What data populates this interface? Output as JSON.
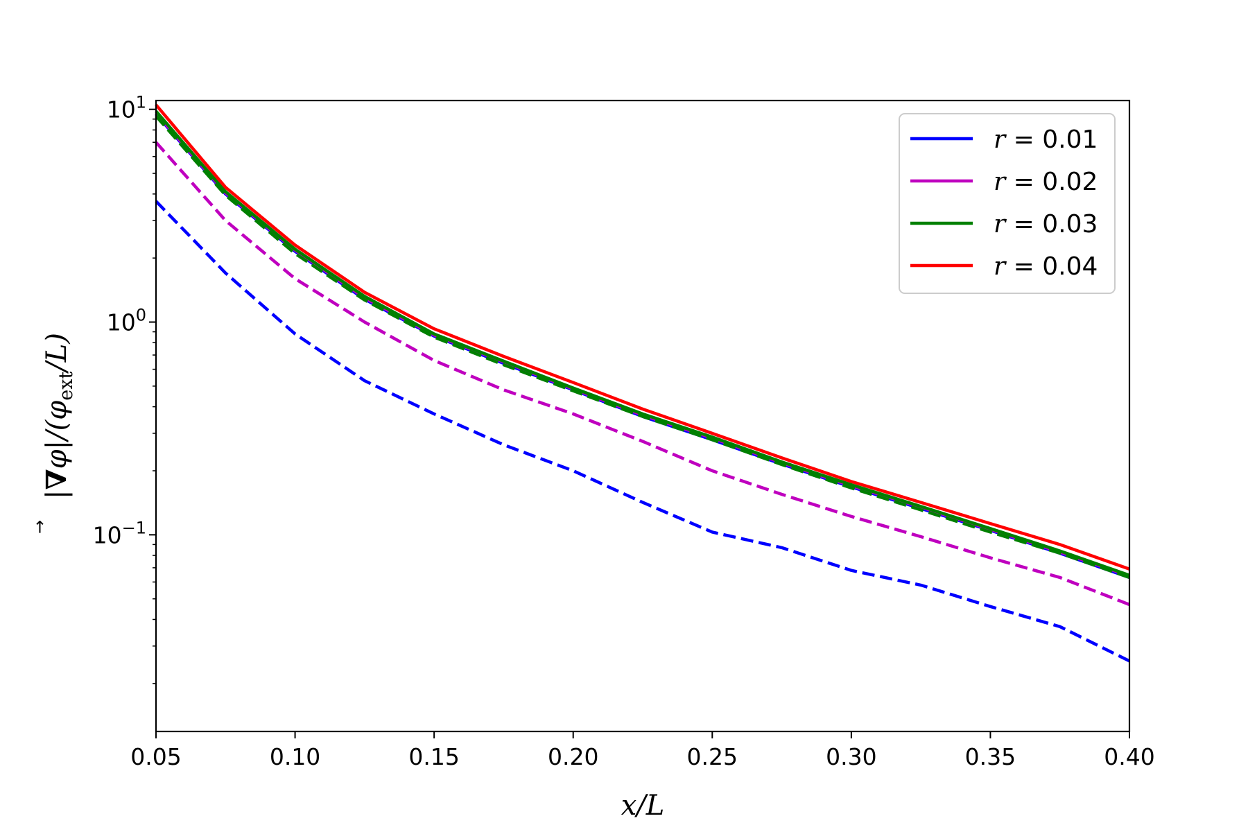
{
  "chart_data": {
    "type": "line",
    "xlabel": "x/L",
    "ylabel": "|∇⃗φ|/(φ_ext/L)",
    "ylabel_parts": {
      "pre": "|",
      "nabla": "∇",
      "arrow": "→",
      "mid": "φ|/(φ",
      "sub": "ext",
      "post": "/L)"
    },
    "xlim": [
      0.05,
      0.4
    ],
    "ylim": [
      0.0119,
      11.0
    ],
    "yscale": "log",
    "grid": false,
    "legend_position": "top-right",
    "x_ticks": [
      "0.05",
      "0.10",
      "0.15",
      "0.20",
      "0.25",
      "0.30",
      "0.35",
      "0.40"
    ],
    "x_tick_values": [
      0.05,
      0.1,
      0.15,
      0.2,
      0.25,
      0.3,
      0.35,
      0.4
    ],
    "y_ticks": [
      {
        "value": 10,
        "base": "10",
        "exp": "1"
      },
      {
        "value": 1,
        "base": "10",
        "exp": "0"
      },
      {
        "value": 0.1,
        "base": "10",
        "exp": "−1"
      }
    ],
    "y_minor_ticks": [
      0.02,
      0.03,
      0.04,
      0.05,
      0.06,
      0.07,
      0.08,
      0.09,
      0.2,
      0.3,
      0.4,
      0.5,
      0.6,
      0.7,
      0.8,
      0.9,
      2,
      3,
      4,
      5,
      6,
      7,
      8,
      9
    ],
    "x": [
      0.05,
      0.075,
      0.1,
      0.125,
      0.15,
      0.175,
      0.2,
      0.225,
      0.25,
      0.275,
      0.3,
      0.325,
      0.35,
      0.375,
      0.4
    ],
    "series": [
      {
        "name": "r = 0.01",
        "label_var": "r",
        "label_val": "= 0.01",
        "color": "#0000ff",
        "style": "solid",
        "values": [
          9.5,
          4.0,
          2.15,
          1.28,
          0.86,
          0.64,
          0.48,
          0.36,
          0.28,
          0.215,
          0.168,
          0.133,
          0.105,
          0.082,
          0.063
        ]
      },
      {
        "name": "",
        "color": "#0000ff",
        "style": "dashed",
        "values": [
          3.7,
          1.7,
          0.88,
          0.53,
          0.37,
          0.265,
          0.2,
          0.142,
          0.103,
          0.087,
          0.068,
          0.058,
          0.046,
          0.037,
          0.0255
        ]
      },
      {
        "name": "r = 0.02",
        "label_var": "r",
        "label_val": "= 0.02",
        "color": "#bf00bf",
        "style": "solid",
        "values": [
          9.6,
          4.05,
          2.18,
          1.3,
          0.87,
          0.65,
          0.485,
          0.365,
          0.285,
          0.218,
          0.17,
          0.135,
          0.106,
          0.083,
          0.064
        ]
      },
      {
        "name": "",
        "color": "#bf00bf",
        "style": "dashed",
        "values": [
          7.0,
          3.0,
          1.6,
          1.0,
          0.66,
          0.48,
          0.37,
          0.275,
          0.2,
          0.155,
          0.122,
          0.098,
          0.078,
          0.063,
          0.047
        ]
      },
      {
        "name": "r = 0.03",
        "label_var": "r",
        "label_val": "= 0.03",
        "color": "#008000",
        "style": "solid",
        "values": [
          9.8,
          4.1,
          2.2,
          1.32,
          0.88,
          0.655,
          0.49,
          0.37,
          0.288,
          0.22,
          0.172,
          0.136,
          0.107,
          0.084,
          0.0645
        ]
      },
      {
        "name": "",
        "color": "#008000",
        "style": "dashed",
        "values": [
          9.3,
          3.95,
          2.1,
          1.27,
          0.85,
          0.63,
          0.475,
          0.36,
          0.28,
          0.214,
          0.166,
          0.131,
          0.103,
          0.082,
          0.063
        ]
      },
      {
        "name": "r = 0.04",
        "label_var": "r",
        "label_val": "= 0.04",
        "color": "#ff0000",
        "style": "solid",
        "values": [
          10.5,
          4.3,
          2.3,
          1.38,
          0.93,
          0.69,
          0.52,
          0.39,
          0.3,
          0.23,
          0.178,
          0.142,
          0.113,
          0.09,
          0.069
        ]
      }
    ]
  }
}
